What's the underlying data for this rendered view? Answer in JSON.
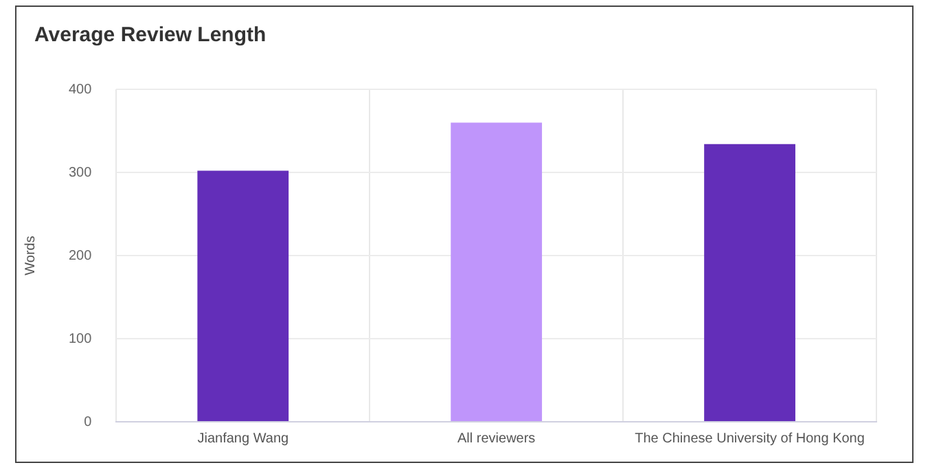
{
  "chart_data": {
    "type": "bar",
    "title": "Average Review Length",
    "ylabel": "Words",
    "categories": [
      "Jianfang Wang",
      "All reviewers",
      "The Chinese University of Hong Kong"
    ],
    "values": [
      302,
      360,
      334
    ],
    "colors": [
      "#632eb9",
      "#bf95fb",
      "#632eb9"
    ],
    "ylim": [
      0,
      400
    ],
    "yticks": [
      0,
      100,
      200,
      300,
      400
    ],
    "grid": true,
    "legend": false
  }
}
